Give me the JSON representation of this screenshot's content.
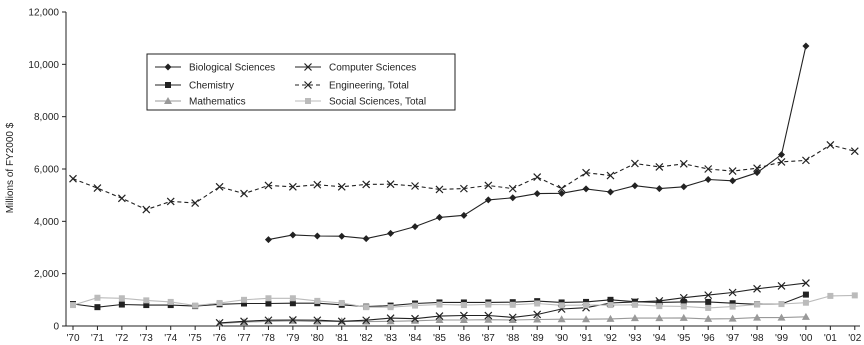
{
  "chart_data": {
    "type": "line",
    "title": "",
    "xlabel": "",
    "ylabel": "Millions of FY2000 $",
    "x": [
      "'70",
      "'71",
      "'72",
      "'73",
      "'74",
      "'75",
      "'76",
      "'77",
      "'78",
      "'79",
      "'80",
      "'81",
      "'82",
      "'83",
      "'84",
      "'85",
      "'86",
      "'87",
      "'88",
      "'89",
      "'90",
      "'91",
      "'92",
      "'93",
      "'94",
      "'95",
      "'96",
      "'97",
      "'98",
      "'99",
      "'00",
      "'01",
      "'02"
    ],
    "ylim": [
      0,
      12000
    ],
    "yticks": [
      0,
      2000,
      4000,
      6000,
      8000,
      10000,
      12000
    ],
    "ytick_labels": [
      "0",
      "2,000",
      "4,000",
      "6,000",
      "8,000",
      "10,000",
      "12,000"
    ],
    "grid": false,
    "legend_position": "upper-left",
    "series": [
      {
        "name": "Biological Sciences",
        "color": "#222222",
        "style": "solid",
        "marker": "diamond",
        "values": [
          null,
          null,
          null,
          null,
          null,
          null,
          null,
          null,
          3300,
          3480,
          3440,
          3430,
          3340,
          3540,
          3800,
          4150,
          4230,
          4820,
          4900,
          5060,
          5070,
          5240,
          5120,
          5360,
          5250,
          5320,
          5600,
          5550,
          5860,
          6550,
          10700,
          null,
          null
        ]
      },
      {
        "name": "Chemistry",
        "color": "#222222",
        "style": "solid",
        "marker": "square",
        "values": [
          840,
          720,
          820,
          800,
          800,
          760,
          830,
          860,
          860,
          870,
          870,
          810,
          740,
          780,
          860,
          900,
          900,
          900,
          910,
          950,
          900,
          920,
          1000,
          930,
          900,
          920,
          920,
          870,
          830,
          840,
          1200,
          null,
          null
        ]
      },
      {
        "name": "Mathematics",
        "color": "#999999",
        "style": "solid",
        "marker": "triangle",
        "values": [
          null,
          null,
          null,
          null,
          null,
          null,
          100,
          150,
          180,
          200,
          170,
          180,
          170,
          180,
          200,
          230,
          230,
          240,
          230,
          250,
          260,
          260,
          270,
          300,
          300,
          310,
          270,
          280,
          320,
          320,
          350,
          null,
          null
        ]
      },
      {
        "name": "Computer Sciences",
        "color": "#222222",
        "style": "solid",
        "marker": "x",
        "values": [
          null,
          null,
          null,
          null,
          null,
          null,
          120,
          180,
          220,
          230,
          220,
          180,
          220,
          300,
          280,
          380,
          400,
          400,
          330,
          440,
          650,
          700,
          880,
          920,
          960,
          1080,
          1180,
          1280,
          1420,
          1530,
          1640,
          null,
          null
        ]
      },
      {
        "name": "Engineering, Total",
        "color": "#222222",
        "style": "dashed",
        "marker": "x",
        "values": [
          5630,
          5270,
          4880,
          4450,
          4760,
          4700,
          5320,
          5060,
          5370,
          5320,
          5400,
          5320,
          5410,
          5420,
          5350,
          5220,
          5250,
          5370,
          5250,
          5690,
          5250,
          5860,
          5750,
          6210,
          6080,
          6200,
          6000,
          5920,
          6030,
          6270,
          6330,
          6920,
          6680
        ]
      },
      {
        "name": "Social Sciences, Total",
        "color": "#bbbbbb",
        "style": "solid",
        "marker": "square",
        "values": [
          800,
          1080,
          1060,
          980,
          920,
          780,
          880,
          1000,
          1060,
          1060,
          960,
          880,
          720,
          720,
          780,
          820,
          800,
          820,
          810,
          860,
          790,
          800,
          800,
          810,
          760,
          750,
          690,
          740,
          820,
          840,
          890,
          1150,
          1170
        ]
      }
    ]
  }
}
